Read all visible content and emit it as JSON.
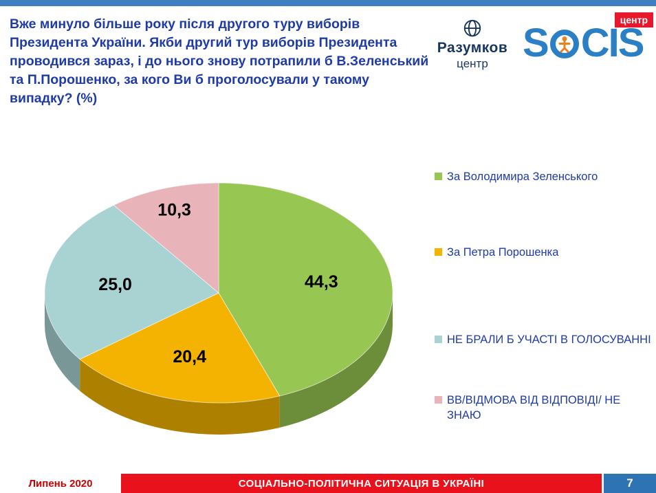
{
  "header": {
    "title": "Вже минуло більше року після другого туру виборів Президента України. Якби другий тур виборів Президента проводився зараз, і до нього знову потрапили б В.Зеленський та П.Порошенко, за кого Ви б проголосували у такому випадку? (%)",
    "razumkov": {
      "name": "Разумков",
      "sub": "центр"
    },
    "socis": {
      "text": "SOCIS",
      "part_first": "S",
      "part_rest": "CIS",
      "badge": "центр"
    }
  },
  "chart_data": {
    "type": "pie",
    "style": "3d",
    "title": "Вже минуло більше року після другого туру виборів Президента України. Якби другий тур виборів Президента проводився зараз, і до нього знову потрапили б В.Зеленський та П.Порошенко, за кого Ви б проголосували у такому випадку? (%)",
    "unit": "%",
    "labels": [
      "За Володимира Зеленського",
      "За Петра Порошенка",
      "НЕ БРАЛИ Б УЧАСТІ В ГОЛОСУВАННІ",
      "ВВ/ВІДМОВА ВІД ВІДПОВІДІ/ НЕ ЗНАЮ"
    ],
    "values": [
      44.3,
      20.4,
      25.0,
      10.3
    ],
    "value_labels": [
      "44,3",
      "20,4",
      "25,0",
      "10,3"
    ],
    "colors": [
      "#97C653",
      "#F3B300",
      "#A9D3D2",
      "#E8B3B9"
    ],
    "start_angle_deg": 0,
    "clockwise": true,
    "legend_position": "right"
  },
  "footer": {
    "date": "Липень 2020",
    "title": "СОЦІАЛЬНО-ПОЛІТИЧНА СИТУАЦІЯ В УКРАЇНІ",
    "page": "7"
  }
}
